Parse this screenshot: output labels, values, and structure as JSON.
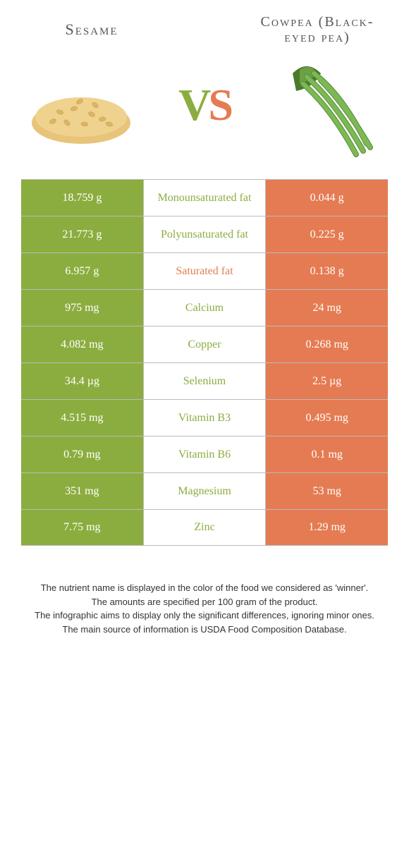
{
  "foods": {
    "left": {
      "name": "Sesame",
      "color": "#8bad3f"
    },
    "right": {
      "name": "Cowpea (Black-eyed pea)",
      "color": "#e57b52"
    }
  },
  "vs_label": {
    "v": "V",
    "s": "S"
  },
  "rows": [
    {
      "left": "18.759 g",
      "label": "Monounsaturated fat",
      "right": "0.044 g",
      "winner": "left"
    },
    {
      "left": "21.773 g",
      "label": "Polyunsaturated fat",
      "right": "0.225 g",
      "winner": "left"
    },
    {
      "left": "6.957 g",
      "label": "Saturated fat",
      "right": "0.138 g",
      "winner": "right"
    },
    {
      "left": "975 mg",
      "label": "Calcium",
      "right": "24 mg",
      "winner": "left"
    },
    {
      "left": "4.082 mg",
      "label": "Copper",
      "right": "0.268 mg",
      "winner": "left"
    },
    {
      "left": "34.4 µg",
      "label": "Selenium",
      "right": "2.5 µg",
      "winner": "left"
    },
    {
      "left": "4.515 mg",
      "label": "Vitamin B3",
      "right": "0.495 mg",
      "winner": "left"
    },
    {
      "left": "0.79 mg",
      "label": "Vitamin B6",
      "right": "0.1 mg",
      "winner": "left"
    },
    {
      "left": "351 mg",
      "label": "Magnesium",
      "right": "53 mg",
      "winner": "left"
    },
    {
      "left": "7.75 mg",
      "label": "Zinc",
      "right": "1.29 mg",
      "winner": "left"
    }
  ],
  "footnotes": [
    "The nutrient name is displayed in the color of the food we considered as 'winner'.",
    "The amounts are specified per 100 gram of the product.",
    "The infographic aims to display only the significant differences, ignoring minor ones.",
    "The main source of information is USDA Food Composition Database."
  ],
  "colors": {
    "green": "#8bad3f",
    "orange": "#e57b52",
    "border": "#bbbbbb",
    "bg": "#ffffff"
  }
}
